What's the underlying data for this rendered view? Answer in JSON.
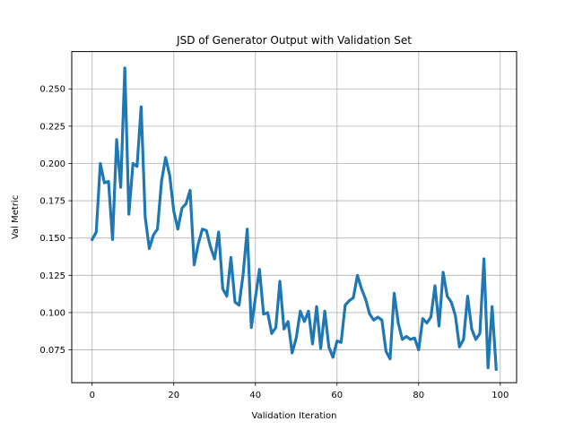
{
  "chart_data": {
    "type": "line",
    "title": "JSD of Generator Output with Validation Set",
    "xlabel": "Validation Iteration",
    "ylabel": "Val Metric",
    "xlim": [
      -5,
      104
    ],
    "ylim": [
      0.053,
      0.275
    ],
    "xticks": [
      0,
      20,
      40,
      60,
      80,
      100
    ],
    "yticks": [
      0.075,
      0.1,
      0.125,
      0.15,
      0.175,
      0.2,
      0.225,
      0.25
    ],
    "xtick_labels": [
      "0",
      "20",
      "40",
      "60",
      "80",
      "100"
    ],
    "ytick_labels": [
      "0.075",
      "0.100",
      "0.125",
      "0.150",
      "0.175",
      "0.200",
      "0.225",
      "0.250"
    ],
    "grid": true,
    "line_color": "#1f77b4",
    "series": [
      {
        "x": [
          0,
          1,
          2,
          3,
          4,
          5,
          6,
          7,
          8,
          9,
          10,
          11,
          12,
          13,
          14,
          15,
          16,
          17,
          18,
          19,
          20,
          21,
          22,
          23,
          24,
          25,
          26,
          27,
          28,
          29,
          30,
          31,
          32,
          33,
          34,
          35,
          36,
          37,
          38,
          39,
          40,
          41,
          42,
          43,
          44,
          45,
          46,
          47,
          48,
          49,
          50,
          51,
          52,
          53,
          54,
          55,
          56,
          57,
          58,
          59,
          60,
          61,
          62,
          63,
          64,
          65,
          66,
          67,
          68,
          69,
          70,
          71,
          72,
          73,
          74,
          75,
          76,
          77,
          78,
          79,
          80,
          81,
          82,
          83,
          84,
          85,
          86,
          87,
          88,
          89,
          90,
          91,
          92,
          93,
          94,
          95,
          96,
          97,
          98,
          99
        ],
        "values": [
          0.149,
          0.154,
          0.2,
          0.187,
          0.188,
          0.149,
          0.216,
          0.184,
          0.264,
          0.166,
          0.2,
          0.198,
          0.238,
          0.164,
          0.143,
          0.152,
          0.156,
          0.188,
          0.204,
          0.192,
          0.168,
          0.156,
          0.17,
          0.173,
          0.182,
          0.132,
          0.146,
          0.156,
          0.155,
          0.144,
          0.136,
          0.154,
          0.116,
          0.111,
          0.137,
          0.107,
          0.105,
          0.126,
          0.156,
          0.09,
          0.11,
          0.129,
          0.099,
          0.1,
          0.086,
          0.09,
          0.121,
          0.089,
          0.094,
          0.073,
          0.083,
          0.101,
          0.094,
          0.101,
          0.079,
          0.104,
          0.076,
          0.101,
          0.077,
          0.07,
          0.081,
          0.08,
          0.105,
          0.108,
          0.11,
          0.125,
          0.116,
          0.109,
          0.099,
          0.095,
          0.097,
          0.095,
          0.074,
          0.069,
          0.113,
          0.093,
          0.082,
          0.084,
          0.082,
          0.083,
          0.075,
          0.096,
          0.093,
          0.097,
          0.118,
          0.091,
          0.127,
          0.111,
          0.107,
          0.098,
          0.077,
          0.082,
          0.111,
          0.089,
          0.082,
          0.086,
          0.136,
          0.063,
          0.104,
          0.062
        ]
      }
    ]
  }
}
